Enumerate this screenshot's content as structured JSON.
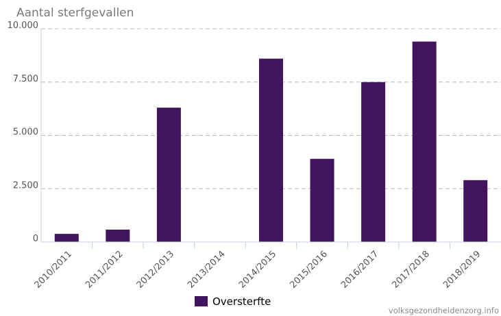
{
  "chart_data": {
    "type": "bar",
    "title": "Aantal sterfgevallen",
    "categories": [
      "2010/2011",
      "2011/2012",
      "2012/2013",
      "2013/2014",
      "2014/2015",
      "2015/2016",
      "2016/2017",
      "2017/2018",
      "2018/2019"
    ],
    "series": [
      {
        "name": "Oversterfte",
        "color": "#42145f",
        "values": [
          380,
          580,
          6300,
          0,
          8600,
          3900,
          7500,
          9400,
          2900
        ]
      }
    ],
    "ylim": [
      0,
      10000
    ],
    "yticks": [
      0,
      2500,
      5000,
      7500,
      10000
    ],
    "ytick_labels": [
      "0",
      "2.500",
      "5.000",
      "7.500",
      "10.000"
    ],
    "grid": true,
    "legend_position": "bottom-center"
  },
  "source": "volksgezondheidenzorg.info"
}
